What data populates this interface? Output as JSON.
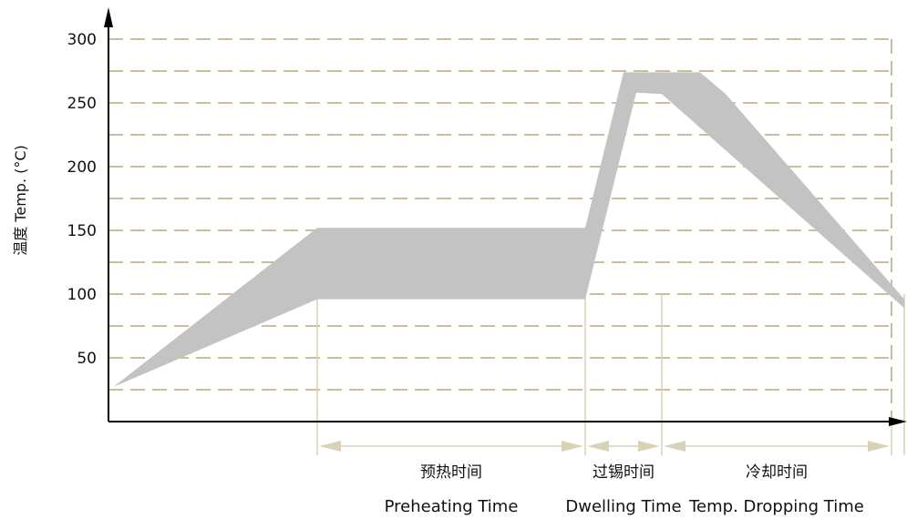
{
  "chart_data": {
    "type": "area",
    "title": "",
    "ylabel": "温度 Temp. (°C)",
    "xlabel": "",
    "y_ticks": [
      "300",
      "250",
      "200",
      "150",
      "100",
      "50"
    ],
    "y_tick_values": [
      300,
      250,
      200,
      150,
      100,
      50
    ],
    "ylim": [
      0,
      300
    ],
    "grid": true,
    "series": [
      {
        "name": "",
        "upper": [
          [
            0,
            27
          ],
          [
            16,
            152
          ],
          [
            37,
            152
          ],
          [
            40,
            274
          ],
          [
            46,
            274
          ],
          [
            48,
            257
          ],
          [
            62,
            96
          ]
        ],
        "lower": [
          [
            0,
            27
          ],
          [
            16,
            96
          ],
          [
            37,
            96
          ],
          [
            41,
            258
          ],
          [
            43,
            257
          ],
          [
            62,
            89
          ]
        ]
      }
    ],
    "phases": [
      {
        "label_zh": "预热时间",
        "label_en": "Preheating Time",
        "start": 16,
        "end": 37
      },
      {
        "label_zh": "过锡时间",
        "label_en": "Dwelling Time",
        "start": 37,
        "end": 43
      },
      {
        "label_zh": "冷却时间",
        "label_en": "Temp. Dropping Time",
        "start": 43,
        "end": 62
      }
    ],
    "colors": {
      "band": "#c3c3c3",
      "grid": "#c9bf9f",
      "guide": "#d9d2b8"
    }
  }
}
